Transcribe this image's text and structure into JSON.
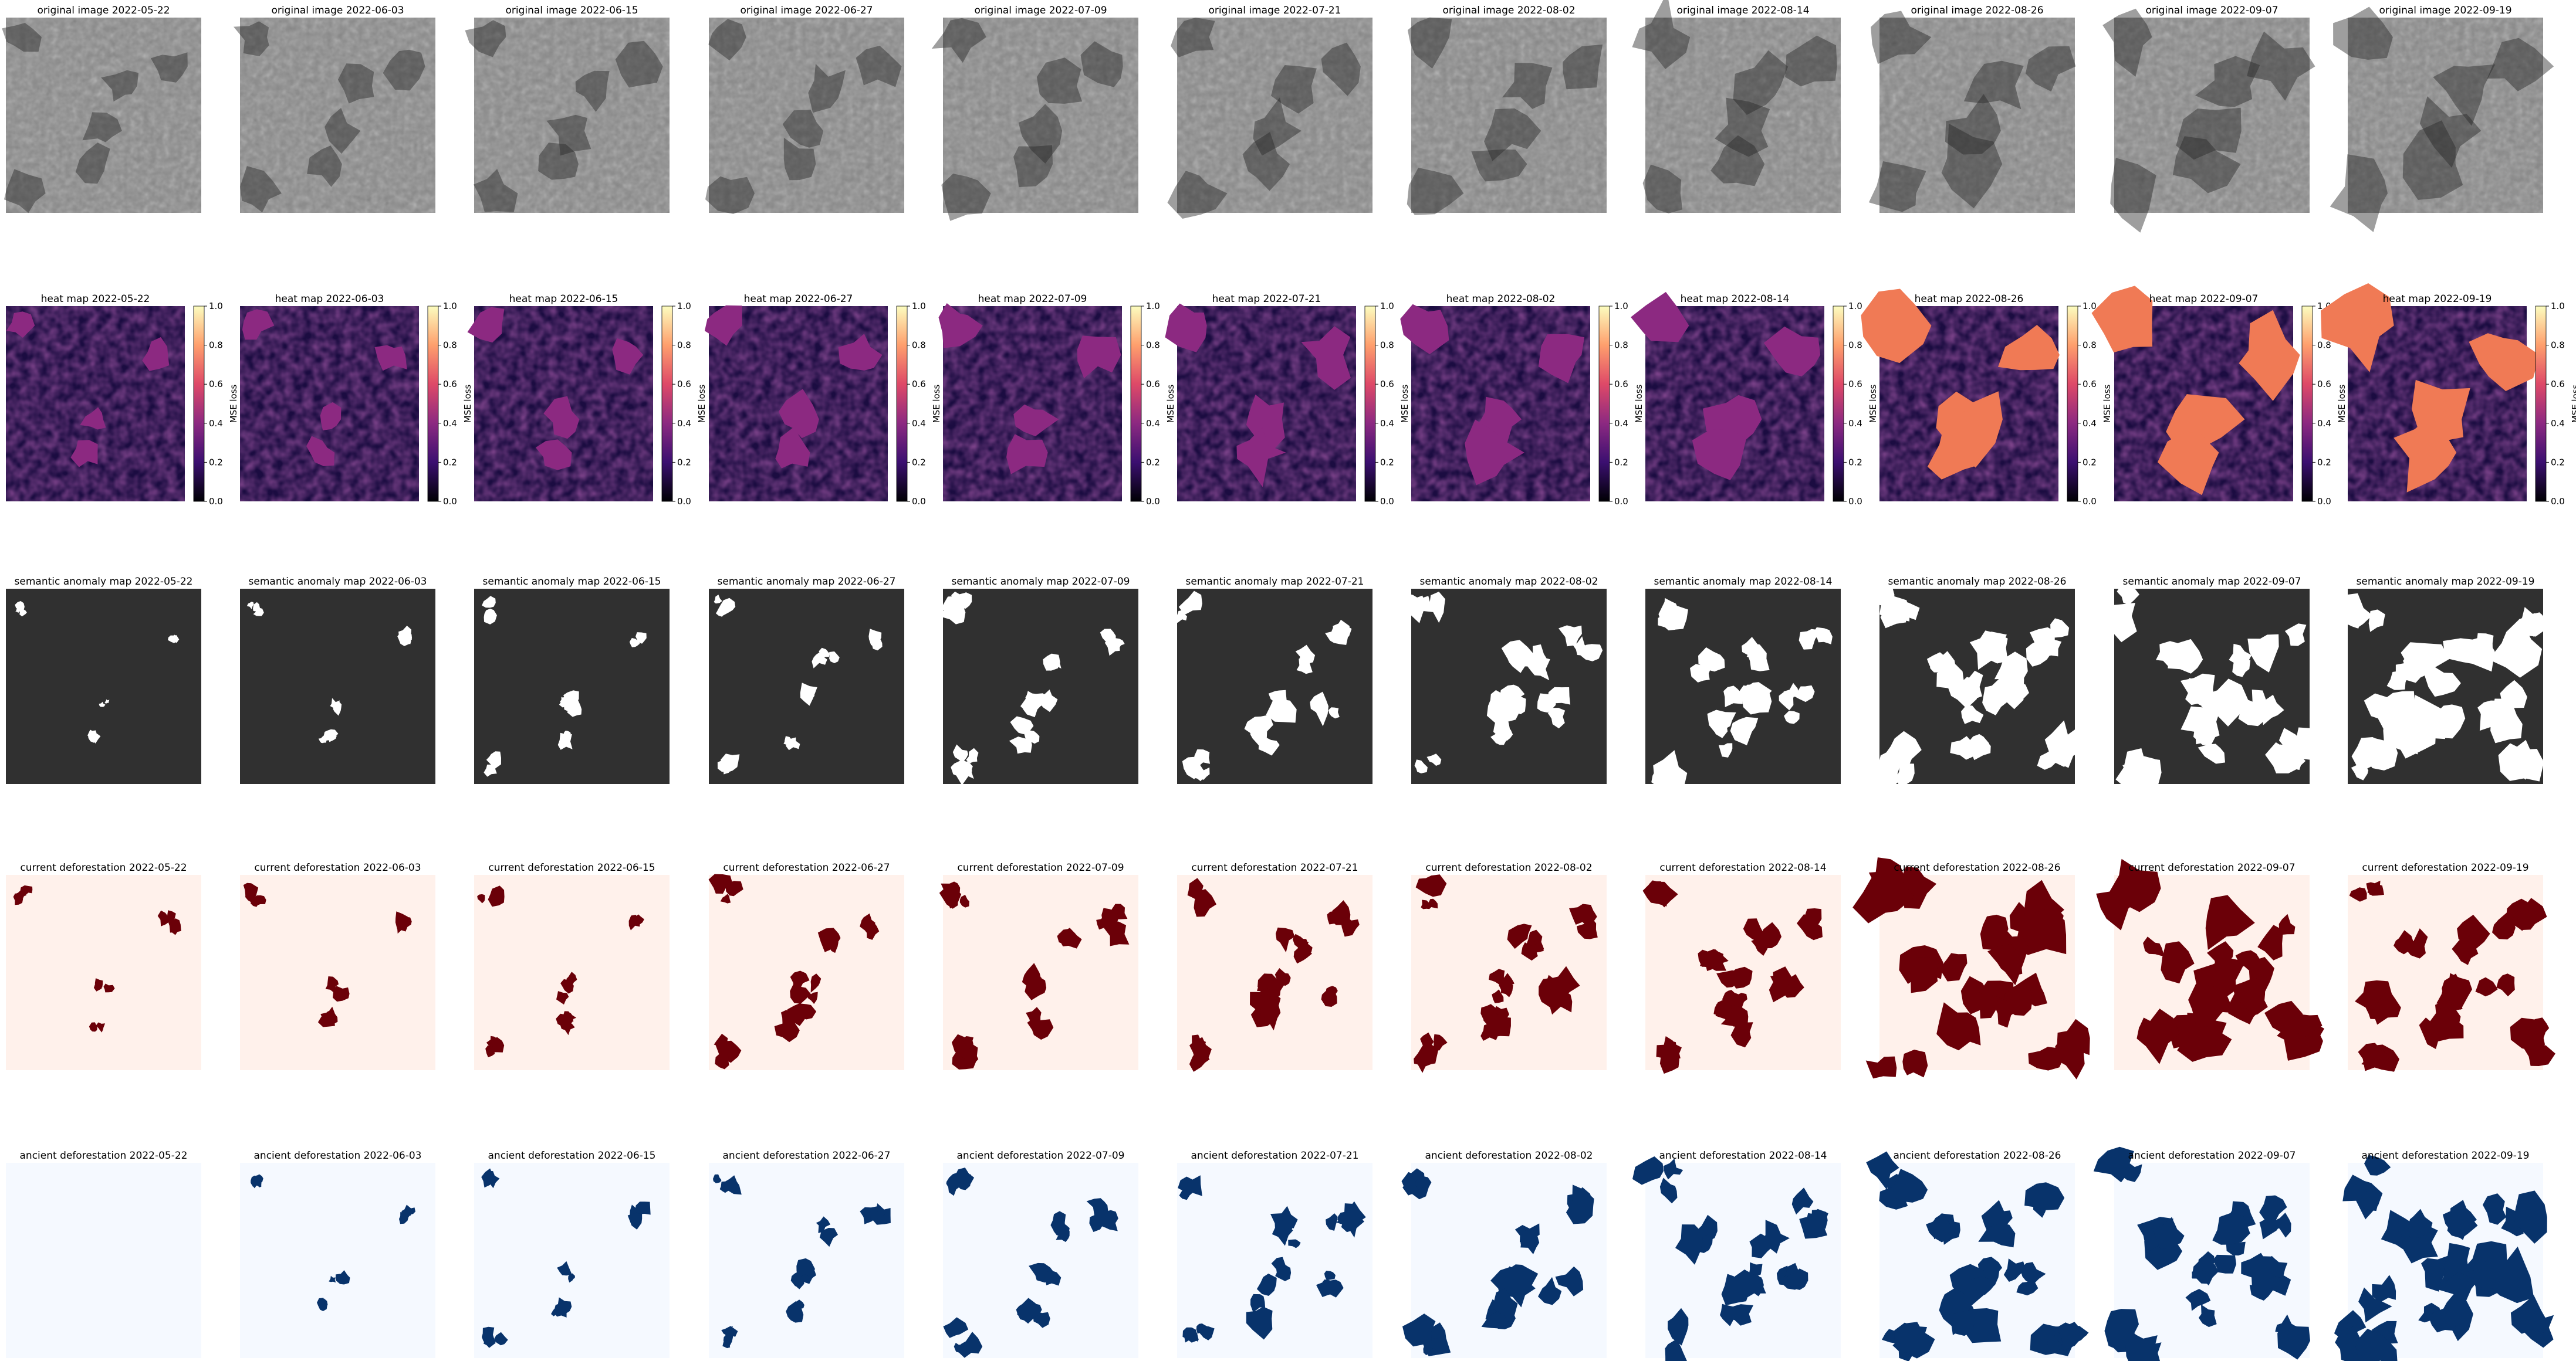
{
  "dates": [
    "2022-05-22",
    "2022-06-03",
    "2022-06-15",
    "2022-06-27",
    "2022-07-09",
    "2022-07-21",
    "2022-08-02",
    "2022-08-14",
    "2022-08-26",
    "2022-09-07",
    "2022-09-19"
  ],
  "rows": [
    {
      "key": "original",
      "prefix": "original image",
      "style": "gray"
    },
    {
      "key": "heat",
      "prefix": "heat map",
      "style": "magma",
      "colorbar": true
    },
    {
      "key": "semantic",
      "prefix": "semantic anomaly map",
      "style": "binary-dark"
    },
    {
      "key": "current",
      "prefix": "current deforestation",
      "style": "reds"
    },
    {
      "key": "ancient",
      "prefix": "ancient deforestation",
      "style": "blues"
    }
  ],
  "colorbar": {
    "label": "MSE loss",
    "ticks": [
      "0.0",
      "0.2",
      "0.4",
      "0.6",
      "0.8",
      "1.0"
    ],
    "range": [
      0.0,
      1.0
    ],
    "colormap": "magma"
  },
  "colors": {
    "semantic_bg": "#303030",
    "semantic_fg": "#ffffff",
    "current_bg": "#fff1eb",
    "current_fg": "#6b0008",
    "ancient_bg": "#f5f9ff",
    "ancient_fg": "#08336b",
    "magma_low": "#1b0c41",
    "magma_mid": "#b73779",
    "magma_high": "#fcfdbf"
  },
  "chart_data": {
    "type": "heatmap",
    "description_rows": [
      "original image",
      "heat map",
      "semantic anomaly map",
      "current deforestation",
      "ancient deforestation"
    ],
    "columns": [
      "2022-05-22",
      "2022-06-03",
      "2022-06-15",
      "2022-06-27",
      "2022-07-09",
      "2022-07-21",
      "2022-08-02",
      "2022-08-14",
      "2022-08-26",
      "2022-09-07",
      "2022-09-19"
    ],
    "colorbar": {
      "label": "MSE loss",
      "range": [
        0.0,
        1.0
      ],
      "ticks": [
        0.0,
        0.2,
        0.4,
        0.6,
        0.8,
        1.0
      ]
    }
  }
}
